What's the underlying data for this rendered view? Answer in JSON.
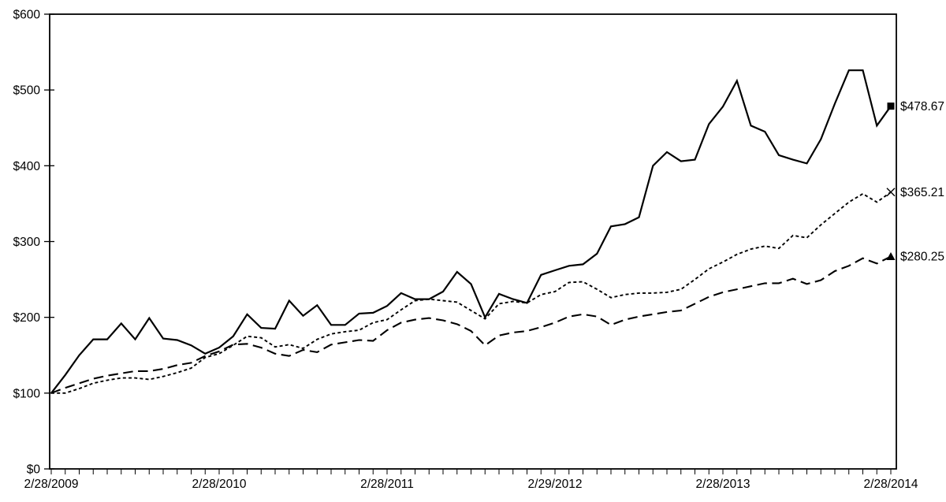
{
  "chart": {
    "background": "#ffffff",
    "axis_color": "#000000",
    "text_color": "#000000"
  },
  "chart_data": {
    "type": "line",
    "title": "",
    "xlabel": "",
    "ylabel": "",
    "grid": false,
    "legend_position": "none",
    "frame": true,
    "ylim": [
      0,
      600
    ],
    "y_tick_step": 100,
    "y_tick_labels": [
      "$0",
      "$100",
      "$200",
      "$300",
      "$400",
      "$500",
      "$600"
    ],
    "x_tick_labels": [
      "2/28/2009",
      "2/28/2010",
      "2/28/2011",
      "2/29/2012",
      "2/28/2013",
      "2/28/2014"
    ],
    "x_minor_ticks": "monthly",
    "months_total": 60,
    "points_per_series": 61,
    "series": [
      {
        "name": "solid-series",
        "line_style": "solid",
        "marker": "filled-square",
        "color": "#000000",
        "end_label": "$478.67",
        "end_value": 478.67,
        "values": [
          100,
          124,
          150,
          171,
          171,
          192,
          171,
          199,
          172,
          170,
          163,
          152,
          160,
          175,
          204,
          186,
          185,
          222,
          202,
          216,
          190,
          190,
          205,
          206,
          215,
          232,
          224,
          224,
          234,
          260,
          244,
          200,
          231,
          224,
          219,
          256,
          262,
          268,
          270,
          284,
          320,
          323,
          332,
          400,
          418,
          406,
          408,
          455,
          478,
          512,
          453,
          445,
          414,
          408,
          403,
          435,
          482,
          526,
          526,
          453,
          478.67
        ]
      },
      {
        "name": "short-dash-series",
        "line_style": "short-dash",
        "marker": "x-cross",
        "color": "#000000",
        "end_label": "$365.21",
        "end_value": 365.21,
        "values": [
          100,
          100,
          106,
          113,
          117,
          120,
          120,
          118,
          122,
          127,
          133,
          147,
          152,
          163,
          175,
          173,
          161,
          164,
          159,
          171,
          178,
          181,
          183,
          193,
          197,
          210,
          222,
          224,
          222,
          220,
          209,
          198,
          218,
          221,
          219,
          230,
          234,
          246,
          247,
          237,
          226,
          230,
          232,
          232,
          233,
          237,
          250,
          264,
          273,
          283,
          290,
          294,
          291,
          308,
          305,
          322,
          337,
          352,
          363,
          352,
          365.21
        ]
      },
      {
        "name": "long-dash-series",
        "line_style": "long-dash",
        "marker": "filled-triangle",
        "color": "#000000",
        "end_label": "$280.25",
        "end_value": 280.25,
        "values": [
          100,
          107,
          113,
          119,
          123,
          126,
          129,
          129,
          132,
          137,
          140,
          149,
          155,
          164,
          165,
          160,
          152,
          149,
          157,
          154,
          164,
          167,
          170,
          169,
          183,
          193,
          197,
          199,
          196,
          191,
          182,
          163,
          176,
          180,
          182,
          187,
          193,
          201,
          204,
          201,
          190,
          197,
          201,
          204,
          207,
          209,
          218,
          227,
          233,
          237,
          241,
          245,
          245,
          251,
          244,
          249,
          261,
          268,
          278,
          271,
          280.25
        ]
      }
    ]
  }
}
